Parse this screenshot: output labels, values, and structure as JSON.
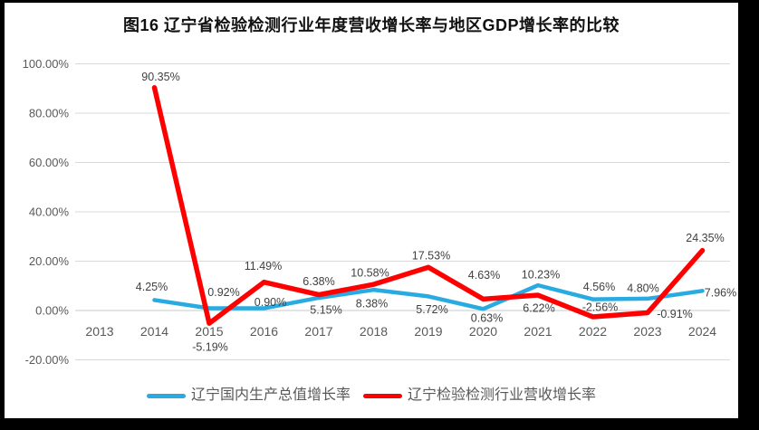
{
  "title": "图16 辽宁省检验检测行业年度营收增长率与地区GDP增长率的比较",
  "colors": {
    "frame_bg": "#000000",
    "page_bg": "#ffffff",
    "gridline": "#D9D9D9",
    "zero_line": "#C9C9C9",
    "axis_text": "#595959",
    "data_label_text": "#404040",
    "series_gdp": "#29ABE2",
    "series_revenue": "#FF0000"
  },
  "chart_data": {
    "type": "line",
    "title": "图16 辽宁省检验检测行业年度营收增长率与地区GDP增长率的比较",
    "categories": [
      "2013",
      "2014",
      "2015",
      "2016",
      "2017",
      "2018",
      "2019",
      "2020",
      "2021",
      "2022",
      "2023",
      "2024"
    ],
    "xlabel": "",
    "ylabel": "",
    "ylim": [
      -20,
      100
    ],
    "ytick_step": 20,
    "ytick_labels": [
      "100.00%",
      "80.00%",
      "60.00%",
      "40.00%",
      "20.00%",
      "0.00%",
      "-20.00%"
    ],
    "grid": true,
    "legend_position": "bottom",
    "series": [
      {
        "name": "辽宁国内生产总值增长率",
        "color": "#29ABE2",
        "start_index": 1,
        "values": [
          4.25,
          0.92,
          0.9,
          5.15,
          8.38,
          5.72,
          0.63,
          10.23,
          4.56,
          4.8,
          7.96
        ],
        "labels": [
          "4.25%",
          "0.92%",
          "0.90%",
          "5.15%",
          "8.38%",
          "5.72%",
          "0.63%",
          "10.23%",
          "4.56%",
          "4.80%",
          "7.96%"
        ],
        "label_offsets": [
          [
            -3,
            -15
          ],
          [
            16,
            -18
          ],
          [
            7,
            -7
          ],
          [
            8,
            13
          ],
          [
            -2,
            15
          ],
          [
            4,
            14
          ],
          [
            4,
            10
          ],
          [
            3,
            -12
          ],
          [
            7,
            -14
          ],
          [
            -5,
            -12
          ],
          [
            20,
            2
          ]
        ]
      },
      {
        "name": "辽宁检验检测行业营收增长率",
        "color": "#FF0000",
        "start_index": 1,
        "values": [
          90.35,
          -5.19,
          11.49,
          6.38,
          10.58,
          17.53,
          4.63,
          6.22,
          -2.56,
          -0.91,
          24.35
        ],
        "labels": [
          "90.35%",
          "-5.19%",
          "11.49%",
          "6.38%",
          "10.58%",
          "17.53%",
          "4.63%",
          "6.22%",
          "-2.56%",
          "-0.91%",
          "24.35%"
        ],
        "label_offsets": [
          [
            7,
            -12
          ],
          [
            1,
            26
          ],
          [
            -1,
            -18
          ],
          [
            0,
            -15
          ],
          [
            -4,
            -13
          ],
          [
            3,
            -13
          ],
          [
            1,
            -27
          ],
          [
            1,
            14
          ],
          [
            8,
            -11
          ],
          [
            30,
            1
          ],
          [
            3,
            -14
          ]
        ]
      }
    ]
  }
}
